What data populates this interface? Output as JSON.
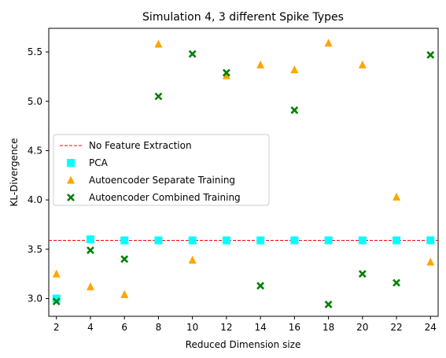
{
  "chart_data": {
    "type": "scatter",
    "title": "Simulation 4, 3 different Spike Types",
    "xlabel": "Reduced Dimension size",
    "ylabel": "KL-Divergence",
    "xlim": [
      1.55,
      24.45
    ],
    "ylim": [
      2.82,
      5.74
    ],
    "xticks": [
      2,
      4,
      6,
      8,
      10,
      12,
      14,
      16,
      18,
      20,
      22,
      24
    ],
    "yticks": [
      3.0,
      3.5,
      4.0,
      4.5,
      5.0,
      5.5
    ],
    "ytick_labels": [
      "3.0",
      "3.5",
      "4.0",
      "4.5",
      "5.0",
      "5.5"
    ],
    "grid": false,
    "legend_position": "center-left",
    "reference_line": {
      "name": "No Feature Extraction",
      "y": 3.59,
      "color": "#ff0000",
      "style": "dashed"
    },
    "series": [
      {
        "name": "PCA",
        "marker": "square",
        "color": "#00ffff",
        "x": [
          2,
          4,
          6,
          8,
          10,
          12,
          14,
          16,
          18,
          20,
          22,
          24
        ],
        "y": [
          3.0,
          3.6,
          3.59,
          3.59,
          3.59,
          3.59,
          3.59,
          3.59,
          3.59,
          3.59,
          3.59,
          3.59
        ]
      },
      {
        "name": "Autoencoder Separate Training",
        "marker": "triangle",
        "color": "#ffa500",
        "x": [
          2,
          4,
          6,
          8,
          10,
          12,
          14,
          16,
          18,
          20,
          22,
          24
        ],
        "y": [
          3.25,
          3.12,
          3.04,
          5.58,
          3.39,
          5.26,
          5.37,
          5.32,
          5.59,
          5.37,
          4.03,
          3.37
        ]
      },
      {
        "name": "Autoencoder Combined Training",
        "marker": "x",
        "color": "#008000",
        "x": [
          2,
          4,
          6,
          8,
          10,
          12,
          14,
          16,
          18,
          20,
          22,
          24
        ],
        "y": [
          2.97,
          3.49,
          3.4,
          5.05,
          5.48,
          5.29,
          3.13,
          4.91,
          2.94,
          3.25,
          3.16,
          5.47
        ]
      }
    ]
  }
}
